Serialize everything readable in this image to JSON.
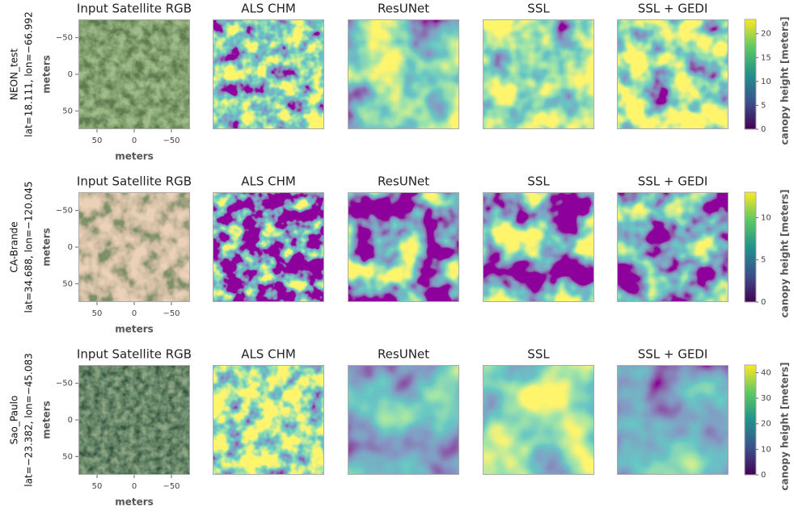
{
  "panel_titles": [
    "Input Satellite RGB",
    "ALS CHM",
    "ResUNet",
    "SSL",
    "SSL + GEDI"
  ],
  "axes": {
    "ylabel": "meters",
    "xlabel": "meters",
    "ylim": [
      -75,
      75
    ],
    "xlim": [
      75,
      -75
    ],
    "yticks": [
      {
        "value": -50,
        "label": "−50"
      },
      0,
      50
    ],
    "xticks": [
      50,
      0,
      {
        "value": -50,
        "label": "−50"
      }
    ]
  },
  "rows": [
    {
      "site": "NEON_test",
      "coords": "lat=18.111, lon=−66.992",
      "colorbar": {
        "label": "canopy height [meters]",
        "lim": [
          0,
          23
        ],
        "ticks": [
          0,
          5,
          10,
          15,
          20
        ]
      }
    },
    {
      "site": "CA-Brande",
      "coords": "lat=34.688, lon=−120.045",
      "colorbar": {
        "label": "canopy height [meters]",
        "lim": [
          0,
          13
        ],
        "ticks": [
          0,
          5,
          10
        ]
      }
    },
    {
      "site": "Sao_Paulo",
      "coords": "lat=−23.382, lon=−45.083",
      "colorbar": {
        "label": "canopy height [meters]",
        "lim": [
          0,
          43
        ],
        "ticks": [
          0,
          10,
          20,
          30,
          40
        ]
      }
    }
  ]
}
